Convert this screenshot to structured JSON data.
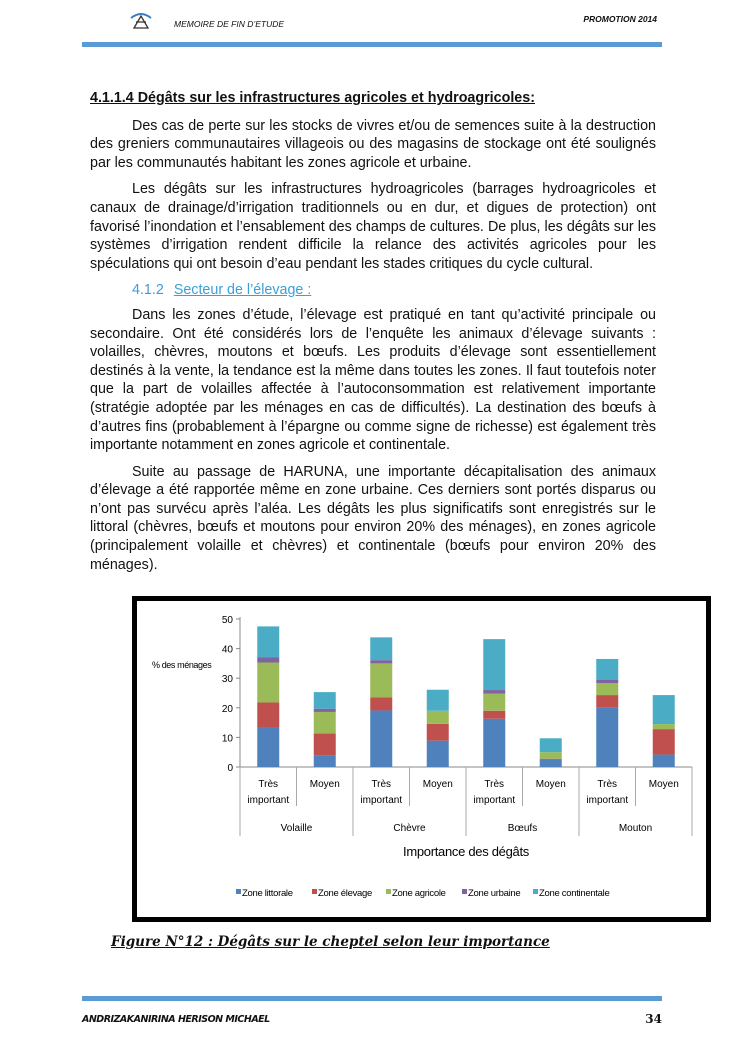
{
  "header": {
    "left": "MEMOIRE DE FIN D’ETUDE",
    "right": "PROMOTION 2014",
    "accent": "#5b9bd5"
  },
  "section": {
    "heading": "4.1.1.4 Dégâts sur les infrastructures agricoles et hydroagricoles:",
    "paragraphs": [
      "Des cas de perte sur les stocks de vivres et/ou de semences suite à la destruction des greniers communautaires villageois ou des magasins de stockage ont été soulignés par les communautés habitant les zones agricole et urbaine.",
      "Les dégâts sur les infrastructures hydroagricoles (barrages hydroagricoles  et canaux de drainage/d’irrigation traditionnels ou en dur, et digues de protection) ont favorisé l’inondation et l’ensablement des champs de cultures. De plus, les dégâts sur les systèmes d’irrigation rendent difficile la relance des activités agricoles pour les spéculations qui ont besoin d’eau pendant les stades critiques du cycle cultural."
    ]
  },
  "subsection": {
    "number": "4.1.2",
    "title": "Secteur de l’élevage :",
    "color": "#3aa0d8",
    "paragraphs": [
      "Dans les zones d’étude, l’élevage est pratiqué en tant qu’activité principale ou secondaire. Ont été considérés lors de l’enquête les animaux d’élevage suivants : volailles, chèvres, moutons et bœufs. Les produits d’élevage sont essentiellement destinés à la vente, la tendance est la même dans toutes les zones.  Il faut toutefois noter que la part de volailles affectée à l’autoconsommation est relativement importante (stratégie adoptée par les ménages en cas de difficultés). La destination des bœufs à d’autres fins (probablement à l’épargne ou comme signe de richesse) est également très importante notamment en zones agricole et continentale.",
      "Suite au passage de HARUNA, une importante décapitalisation des animaux d’élevage a été rapportée même en zone urbaine. Ces derniers sont portés disparus ou n’ont pas survécu après l’aléa. Les dégâts les plus significatifs sont enregistrés sur le littoral (chèvres, bœufs et moutons pour environ 20% des ménages), en zones agricole (principalement volaille et chèvres) et continentale (bœufs pour environ 20% des ménages)."
    ]
  },
  "chart_data": {
    "type": "bar",
    "stacked": true,
    "ylabel": "% des ménages",
    "xlabel": "Importance des dégâts",
    "ylim": [
      0,
      50
    ],
    "yticks": [
      0,
      10,
      20,
      30,
      40,
      50
    ],
    "groups": [
      "Volaille",
      "Chèvre",
      "Bœufs",
      "Mouton"
    ],
    "categories": [
      "Très important",
      "Moyen",
      "Très important",
      "Moyen",
      "Très important",
      "Moyen",
      "Très important",
      "Moyen"
    ],
    "category_lines": [
      [
        "Très",
        "important"
      ],
      [
        "Moyen"
      ]
    ],
    "grid": false,
    "legend_position": "bottom",
    "series": [
      {
        "name": "Zone littorale",
        "color": "#4f81bd",
        "values": [
          13.2,
          3.8,
          19.1,
          8.9,
          16.3,
          2.4,
          20.0,
          4.2
        ]
      },
      {
        "name": "Zone élevage",
        "color": "#c0504d",
        "values": [
          8.6,
          7.5,
          4.4,
          5.7,
          2.7,
          0.4,
          4.3,
          8.6
        ]
      },
      {
        "name": "Zone agricole",
        "color": "#9bbb59",
        "values": [
          13.5,
          7.3,
          11.5,
          4.4,
          5.8,
          2.2,
          4.0,
          1.7
        ]
      },
      {
        "name": "Zone urbaine",
        "color": "#8064a2",
        "values": [
          1.7,
          1.1,
          1.1,
          0,
          1.2,
          0,
          1.1,
          0
        ]
      },
      {
        "name": "Zone continentale",
        "color": "#4bacc6",
        "values": [
          10.5,
          5.6,
          7.7,
          7.1,
          17.2,
          4.7,
          7.1,
          9.8
        ]
      }
    ]
  },
  "caption": "Figure N°12 : Dégâts sur le cheptel selon leur importance",
  "footer": {
    "author": "ANDRIZAKANIRINA HERISON MICHAEL",
    "page": "34"
  }
}
